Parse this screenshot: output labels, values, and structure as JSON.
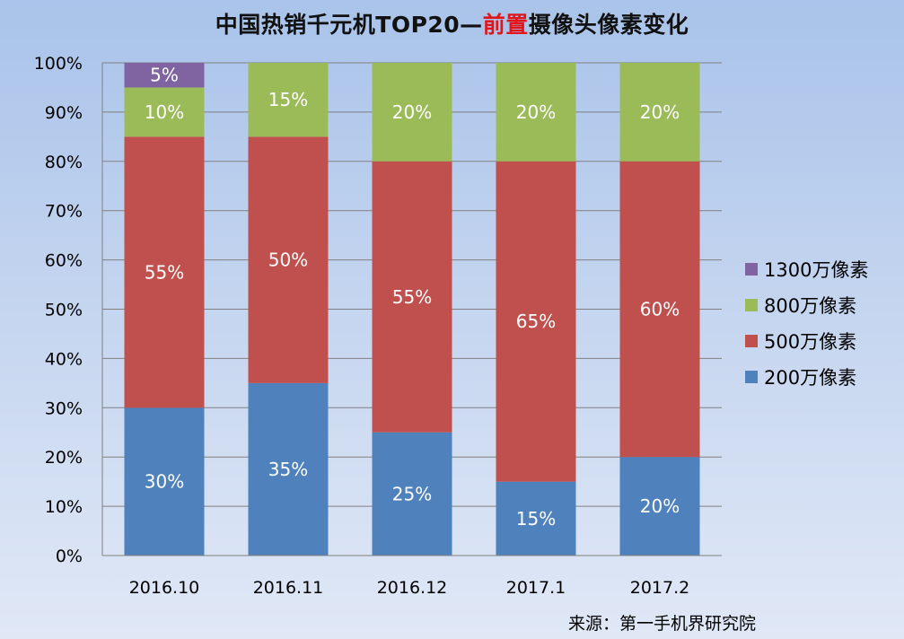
{
  "title": {
    "part1": "中国热销千元机TOP20—",
    "highlight": "前置",
    "part2": "摄像头像素变化"
  },
  "source": "来源：第一手机界研究院",
  "colors": {
    "s200": "#4f81bd",
    "s500": "#c0504d",
    "s800": "#9bbb59",
    "s1300": "#8064a2",
    "highlight": "#e0161b"
  },
  "chart_data": {
    "type": "bar",
    "stacked": true,
    "categories": [
      "2016.10",
      "2016.11",
      "2016.12",
      "2017.1",
      "2017.2"
    ],
    "series": [
      {
        "name": "200万像素",
        "color": "#4f81bd",
        "values": [
          30,
          35,
          25,
          15,
          20
        ],
        "labels": [
          "30%",
          "35%",
          "25%",
          "15%",
          "20%"
        ]
      },
      {
        "name": "500万像素",
        "color": "#c0504d",
        "values": [
          55,
          50,
          55,
          65,
          60
        ],
        "labels": [
          "55%",
          "50%",
          "55%",
          "65%",
          "60%"
        ]
      },
      {
        "name": "800万像素",
        "color": "#9bbb59",
        "values": [
          10,
          15,
          20,
          20,
          20
        ],
        "labels": [
          "10%",
          "15%",
          "20%",
          "20%",
          "20%"
        ]
      },
      {
        "name": "1300万像素",
        "color": "#8064a2",
        "values": [
          5,
          0,
          0,
          0,
          0
        ],
        "labels": [
          "5%",
          "",
          "",
          "",
          ""
        ]
      }
    ],
    "ylim": [
      0,
      100
    ],
    "yticks": [
      "0%",
      "10%",
      "20%",
      "30%",
      "40%",
      "50%",
      "60%",
      "70%",
      "80%",
      "90%",
      "100%"
    ],
    "grid": true,
    "legend_position": "right",
    "legend_order": [
      "1300万像素",
      "800万像素",
      "500万像素",
      "200万像素"
    ]
  }
}
